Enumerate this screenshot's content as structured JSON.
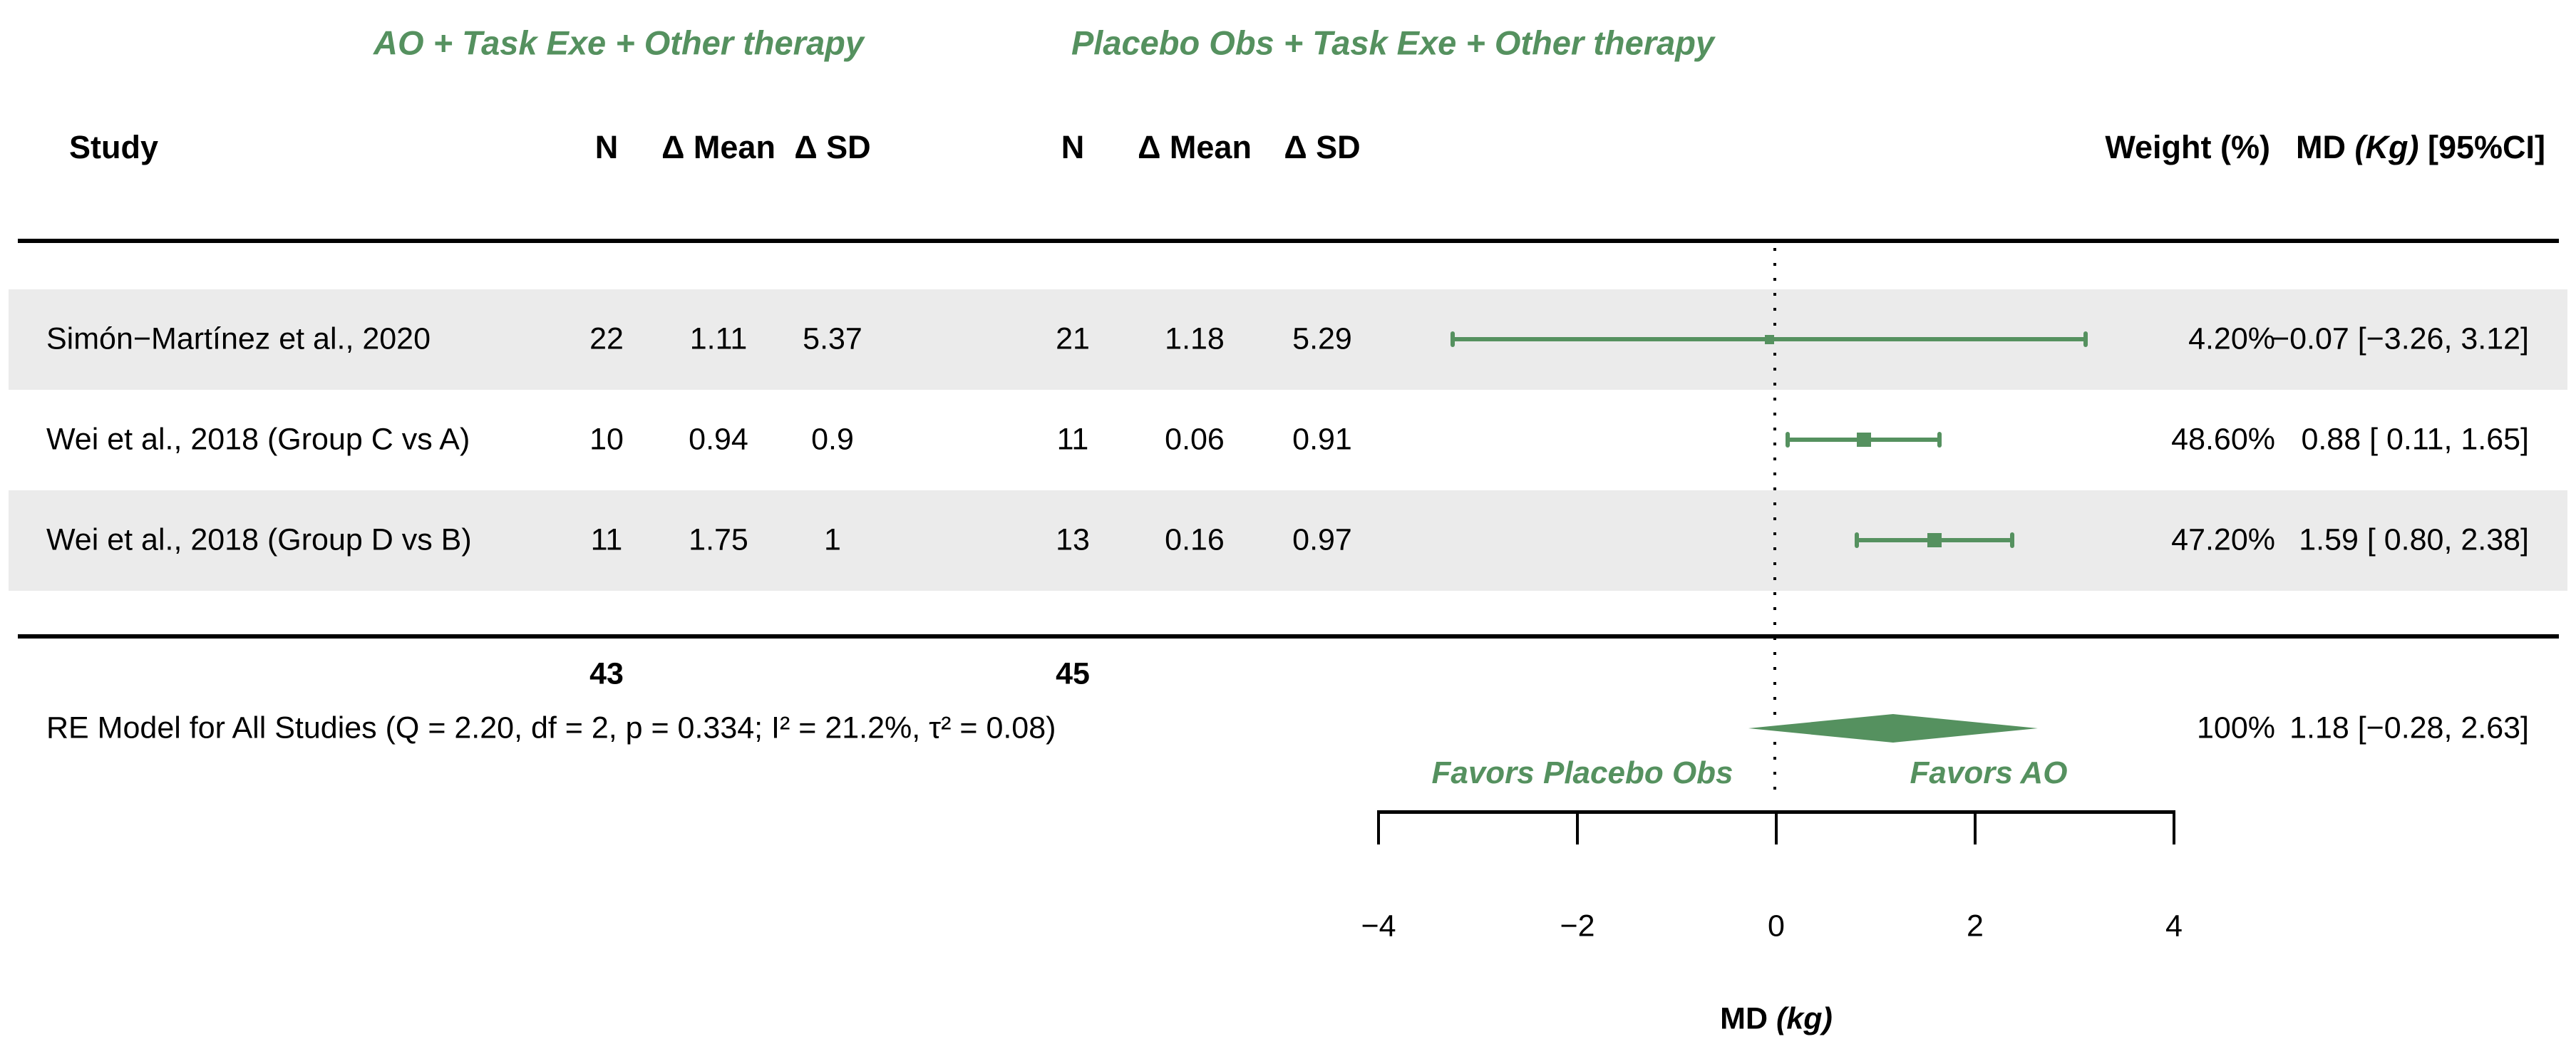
{
  "figure": {
    "group_headers": [
      "AO + Task Exe + Other therapy",
      "Placebo Obs + Task Exe + Other therapy"
    ],
    "columns": {
      "study": "Study",
      "n": "N",
      "mean": "Δ Mean",
      "sd": "Δ SD",
      "weight": "Weight (%)",
      "md_header": {
        "pre": "MD ",
        "unit": "(Kg)",
        "post": " [95%CI]"
      }
    },
    "rows": [
      {
        "study": "Simón−Martínez et al., 2020",
        "n1": "22",
        "mean1": "1.11",
        "sd1": "5.37",
        "n2": "21",
        "mean2": "1.18",
        "sd2": "5.29",
        "weight": "4.20%",
        "md_ci": "−0.07 [−3.26, 3.12]"
      },
      {
        "study": "Wei et al., 2018 (Group C vs A)",
        "n1": "10",
        "mean1": "0.94",
        "sd1": "0.9",
        "n2": "11",
        "mean2": "0.06",
        "sd2": "0.91",
        "weight": "48.60%",
        "md_ci": "0.88 [ 0.11, 1.65]"
      },
      {
        "study": "Wei et al., 2018 (Group D vs B)",
        "n1": "11",
        "mean1": "1.75",
        "sd1": "1",
        "n2": "13",
        "mean2": "0.16",
        "sd2": "0.97",
        "weight": "47.20%",
        "md_ci": "1.59 [ 0.80, 2.38]"
      }
    ],
    "totals": {
      "n1": "43",
      "n2": "45"
    },
    "summary": {
      "label": "RE Model for All Studies (Q = 2.20, df = 2, p = 0.334; I² = 21.2%, τ² = 0.08)",
      "weight": "100%",
      "md_ci": "1.18 [−0.28, 2.63]"
    },
    "favors": {
      "left": "Favors Placebo Obs",
      "right": "Favors AO"
    },
    "xlabel": {
      "pre": "MD ",
      "unit": "(kg)"
    }
  },
  "colors": {
    "accent_green": "#55915f",
    "row_band": "#ebebeb",
    "text": "#000000"
  },
  "chart_data": {
    "type": "scatter",
    "subtype": "forest-plot",
    "title": "",
    "xlabel": "MD (kg)",
    "xlim": [
      -4,
      4
    ],
    "x_ticks": [
      {
        "v": -4,
        "label": "−4"
      },
      {
        "v": -2,
        "label": "−2"
      },
      {
        "v": 0,
        "label": "0"
      },
      {
        "v": 2,
        "label": "2"
      },
      {
        "v": 4,
        "label": "4"
      }
    ],
    "zero_line": 0,
    "favors_left": "Favors Placebo Obs",
    "favors_right": "Favors AO",
    "studies": [
      {
        "name": "Simón−Martínez et al., 2020",
        "n_treatment": 22,
        "mean_treatment": 1.11,
        "sd_treatment": 5.37,
        "n_control": 21,
        "mean_control": 1.18,
        "sd_control": 5.29,
        "md": -0.07,
        "ci": [
          -3.26,
          3.12
        ],
        "weight_pct": 4.2
      },
      {
        "name": "Wei et al., 2018 (Group C vs A)",
        "n_treatment": 10,
        "mean_treatment": 0.94,
        "sd_treatment": 0.9,
        "n_control": 11,
        "mean_control": 0.06,
        "sd_control": 0.91,
        "md": 0.88,
        "ci": [
          0.11,
          1.65
        ],
        "weight_pct": 48.6
      },
      {
        "name": "Wei et al., 2018 (Group D vs B)",
        "n_treatment": 11,
        "mean_treatment": 1.75,
        "sd_treatment": 1,
        "n_control": 13,
        "mean_control": 0.16,
        "sd_control": 0.97,
        "md": 1.59,
        "ci": [
          0.8,
          2.38
        ],
        "weight_pct": 47.2
      }
    ],
    "totals": {
      "n_treatment": 43,
      "n_control": 45
    },
    "summary": {
      "name": "RE Model for All Studies",
      "md": 1.18,
      "ci": [
        -0.28,
        2.63
      ],
      "weight_pct": 100,
      "Q": 2.2,
      "df": 2,
      "p": 0.334,
      "I2_pct": 21.2,
      "tau2": 0.08
    }
  }
}
